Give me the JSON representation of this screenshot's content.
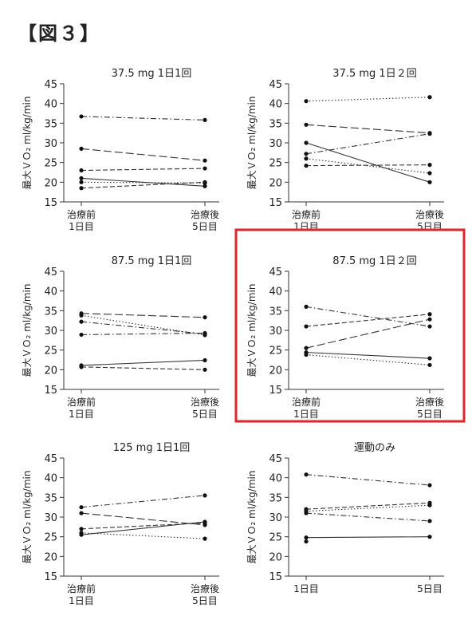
{
  "figure_label": "【図３】",
  "highlight_color": "#e0262b",
  "chart_data": [
    {
      "type": "line",
      "title": "37.5 mg 1日1回",
      "ylabel": "最大ＶＯ₂ ml/kg/min",
      "ylim": [
        15,
        45
      ],
      "yticks": [
        15,
        20,
        25,
        30,
        35,
        40,
        45
      ],
      "categories": [
        "治療前\n1日目",
        "治療後\n5日目"
      ],
      "series": [
        {
          "values": [
            36.7,
            35.8
          ],
          "dash": "dashdot"
        },
        {
          "values": [
            28.5,
            25.5
          ],
          "dash": "longdash"
        },
        {
          "values": [
            23.0,
            23.5
          ],
          "dash": "dashed"
        },
        {
          "values": [
            21.0,
            19.0
          ],
          "dash": "solid"
        },
        {
          "values": [
            20.0,
            19.8
          ],
          "dash": "dotted"
        },
        {
          "values": [
            18.5,
            20.0
          ],
          "dash": "dashed"
        }
      ],
      "highlighted": false
    },
    {
      "type": "line",
      "title": "37.5 mg 1日２回",
      "ylabel": "最大ＶＯ₂ ml/kg/min",
      "ylim": [
        15,
        45
      ],
      "yticks": [
        15,
        20,
        25,
        30,
        35,
        40,
        45
      ],
      "categories": [
        "治療前\n1日目",
        "治療後\n5日目"
      ],
      "series": [
        {
          "values": [
            40.6,
            41.6
          ],
          "dash": "dotted"
        },
        {
          "values": [
            34.6,
            32.5
          ],
          "dash": "longdash"
        },
        {
          "values": [
            30.0,
            20.0
          ],
          "dash": "solid"
        },
        {
          "values": [
            27.2,
            32.3
          ],
          "dash": "dashdot"
        },
        {
          "values": [
            26.0,
            22.3
          ],
          "dash": "dotted"
        },
        {
          "values": [
            24.2,
            24.4
          ],
          "dash": "dashed"
        }
      ],
      "highlighted": false
    },
    {
      "type": "line",
      "title": "87.5 mg 1日1回",
      "ylabel": "最大ＶＯ₂ ml/kg/min",
      "ylim": [
        15,
        45
      ],
      "yticks": [
        15,
        20,
        25,
        30,
        35,
        40,
        45
      ],
      "categories": [
        "治療前\n1日目",
        "治療後\n5日目"
      ],
      "series": [
        {
          "values": [
            34.3,
            33.3
          ],
          "dash": "longdash"
        },
        {
          "values": [
            33.8,
            28.8
          ],
          "dash": "dotted"
        },
        {
          "values": [
            32.2,
            29.1
          ],
          "dash": "dashdot"
        },
        {
          "values": [
            28.9,
            29.3
          ],
          "dash": "dashdot"
        },
        {
          "values": [
            21.1,
            22.4
          ],
          "dash": "solid"
        },
        {
          "values": [
            20.7,
            20.0
          ],
          "dash": "dashed"
        }
      ],
      "highlighted": false
    },
    {
      "type": "line",
      "title": "87.5 mg 1日２回",
      "ylabel": "最大ＶＯ₂ ml/kg/min",
      "ylim": [
        15,
        45
      ],
      "yticks": [
        15,
        20,
        25,
        30,
        35,
        40,
        45
      ],
      "categories": [
        "治療前\n1日目",
        "治療後\n5日目"
      ],
      "series": [
        {
          "values": [
            36.0,
            31.0
          ],
          "dash": "dashdot"
        },
        {
          "values": [
            31.0,
            34.1
          ],
          "dash": "dashed"
        },
        {
          "values": [
            25.5,
            32.8
          ],
          "dash": "longdash"
        },
        {
          "values": [
            24.4,
            22.9
          ],
          "dash": "solid"
        },
        {
          "values": [
            23.8,
            21.2
          ],
          "dash": "dotted"
        }
      ],
      "highlighted": true
    },
    {
      "type": "line",
      "title": "125 mg 1日1回",
      "ylabel": "最大ＶＯ₂ ml/kg/min",
      "ylim": [
        15,
        45
      ],
      "yticks": [
        15,
        20,
        25,
        30,
        35,
        40,
        45
      ],
      "categories": [
        "治療前\n1日目",
        "治療後\n5日目"
      ],
      "series": [
        {
          "values": [
            32.5,
            35.5
          ],
          "dash": "dashdot"
        },
        {
          "values": [
            31.0,
            28.0
          ],
          "dash": "longdash"
        },
        {
          "values": [
            27.0,
            28.5
          ],
          "dash": "dashed"
        },
        {
          "values": [
            26.0,
            24.5
          ],
          "dash": "dotted"
        },
        {
          "values": [
            25.5,
            28.8
          ],
          "dash": "solid"
        }
      ],
      "highlighted": false
    },
    {
      "type": "line",
      "title": "運動のみ",
      "ylabel": "最大ＶＯ₂ ml/kg/min",
      "ylim": [
        15,
        45
      ],
      "yticks": [
        15,
        20,
        25,
        30,
        35,
        40,
        45
      ],
      "categories": [
        "1日目",
        "5日目"
      ],
      "series": [
        {
          "values": [
            40.8,
            38.1
          ],
          "dash": "dashdot"
        },
        {
          "values": [
            32.0,
            33.6
          ],
          "dash": "dashed"
        },
        {
          "values": [
            31.5,
            33.0
          ],
          "dash": "dotted"
        },
        {
          "values": [
            31.0,
            29.0
          ],
          "dash": "dashdot"
        },
        {
          "values": [
            24.8,
            25.0
          ],
          "dash": "solid"
        },
        {
          "values": [
            23.8,
            null
          ],
          "dash": "solid"
        }
      ],
      "highlighted": false
    }
  ]
}
